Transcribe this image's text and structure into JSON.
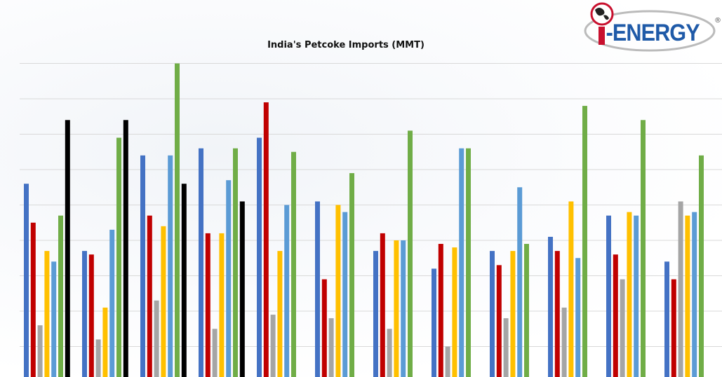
{
  "chart_data": {
    "type": "bar",
    "title": "India's Petcoke Imports (MMT)",
    "xlabel": "",
    "ylabel": "",
    "ylim": [
      0,
      9
    ],
    "grid": true,
    "categories": [
      "",
      "",
      "",
      "",
      "",
      "",
      "",
      "",
      "",
      "",
      "",
      ""
    ],
    "series": [
      {
        "color": "#4472c4",
        "values": [
          5.6,
          3.7,
          6.4,
          6.6,
          6.9,
          5.1,
          3.7,
          3.2,
          3.7,
          4.1,
          4.7,
          3.4
        ]
      },
      {
        "color": "#c00000",
        "values": [
          4.5,
          3.6,
          4.7,
          4.2,
          7.9,
          2.9,
          4.2,
          3.9,
          3.3,
          3.7,
          3.6,
          2.9
        ]
      },
      {
        "color": "#a5a5a5",
        "values": [
          1.6,
          1.2,
          2.3,
          1.5,
          1.9,
          1.8,
          1.5,
          1.0,
          1.8,
          2.1,
          2.9,
          5.1
        ]
      },
      {
        "color": "#ffc000",
        "values": [
          3.7,
          2.1,
          4.4,
          4.2,
          3.7,
          5.0,
          4.0,
          3.8,
          3.7,
          5.1,
          4.8,
          4.7
        ]
      },
      {
        "color": "#5b9bd5",
        "values": [
          3.4,
          4.3,
          6.4,
          5.7,
          5.0,
          4.8,
          4.0,
          6.6,
          5.5,
          3.5,
          4.7,
          4.8
        ]
      },
      {
        "color": "#70ad47",
        "values": [
          4.7,
          6.9,
          9.0,
          6.6,
          6.5,
          5.9,
          7.1,
          6.6,
          3.9,
          7.8,
          7.4,
          6.4
        ]
      },
      {
        "color": "#000000",
        "values": [
          7.4,
          7.4,
          5.6,
          5.1,
          null,
          null,
          null,
          null,
          null,
          null,
          null,
          null
        ]
      }
    ]
  },
  "logo": {
    "text": "I-ENERGY",
    "registered": "®"
  }
}
